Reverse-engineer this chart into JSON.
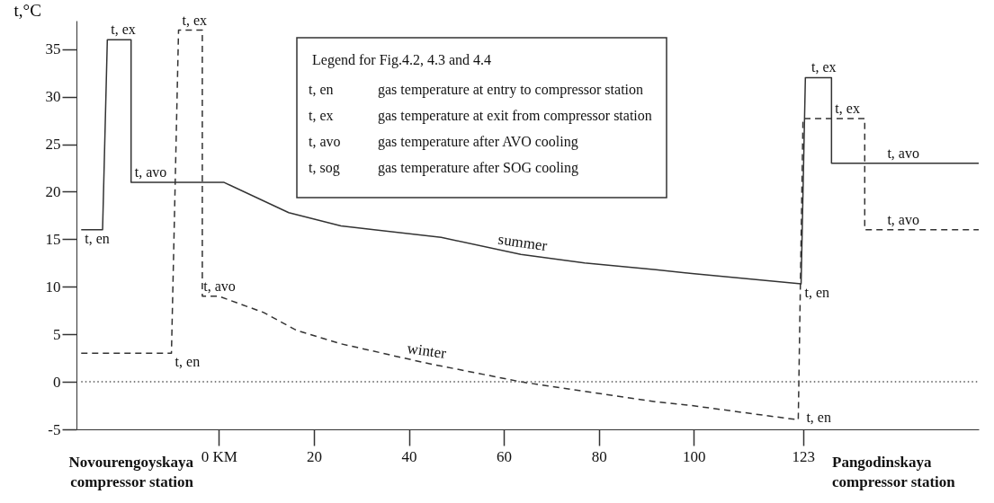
{
  "chart_data": {
    "type": "line",
    "ylabel": "t,°C",
    "xlim": [
      -30,
      160
    ],
    "ylim": [
      -5,
      38
    ],
    "xticks": [
      {
        "value": 0,
        "label": "0  KM"
      },
      20,
      40,
      60,
      80,
      100,
      123
    ],
    "yticks": [
      -5,
      0,
      5,
      10,
      15,
      20,
      25,
      30,
      35
    ],
    "grid": false,
    "marker": "none",
    "series": [
      {
        "name": "summer",
        "color": "#333333",
        "line_style": "solid",
        "x": [
          -29,
          -24.5,
          -23.5,
          -18.5,
          -18.5,
          1,
          14.7,
          25.7,
          46.8,
          63.6,
          77,
          92,
          99.6,
          122.6,
          123.5,
          129,
          129,
          160
        ],
        "values": [
          16,
          16,
          36,
          36,
          21,
          21,
          17.8,
          16.4,
          15.2,
          13.4,
          12.5,
          11.8,
          11.4,
          10.3,
          32,
          32,
          23,
          23
        ]
      },
      {
        "name": "winter",
        "color": "#333333",
        "line_style": "dashed",
        "x": [
          -29,
          -10,
          -8.5,
          -3.5,
          -3.5,
          0,
          9.4,
          16.4,
          25.7,
          43.4,
          63.6,
          77,
          92,
          99.6,
          122,
          123,
          136,
          136,
          160
        ],
        "values": [
          3,
          3,
          37,
          37,
          9,
          9,
          7.3,
          5.4,
          4.0,
          2.0,
          0.0,
          -1.0,
          -2.1,
          -2.5,
          -4.0,
          27.7,
          27.7,
          16,
          16
        ]
      },
      {
        "color": "#555555",
        "line_style": "dotted",
        "x": [
          -29,
          160
        ],
        "values": [
          0,
          0
        ]
      }
    ],
    "annotations": [
      "Novourengoyskaya compressor station",
      "Pangodinskaya compressor station",
      "Legend for Fig.4.2, 4.3 and 4.4",
      "t, en",
      "gas temperature at entry to compressor station",
      "t, ex",
      "gas temperature at exit from compressor station",
      "t, avo",
      "gas temperature after AVO cooling",
      "t, sog",
      "gas temperature after SOG cooling",
      {
        "text": "t, en",
        "x": -29,
        "y": 16
      },
      {
        "text": "t, ex",
        "x": -23.5,
        "y": 36
      },
      {
        "text": "t, avo",
        "x": -18.5,
        "y": 21
      },
      {
        "text": "t, en",
        "x": 122.6,
        "y": 10.3
      },
      {
        "text": "t, ex",
        "x": 124,
        "y": 32
      },
      {
        "text": "t, avo",
        "x": 140,
        "y": 23
      },
      {
        "text": "t, en",
        "x": -10,
        "y": 3
      },
      {
        "text": "t, ex",
        "x": -8.5,
        "y": 37
      },
      {
        "text": "t, avo",
        "x": -4,
        "y": 9
      },
      {
        "text": "t, en",
        "x": 122,
        "y": -4
      },
      {
        "text": "t, ex",
        "x": 129,
        "y": 27.7
      },
      {
        "text": "t, avo",
        "x": 140,
        "y": 16
      }
    ]
  }
}
